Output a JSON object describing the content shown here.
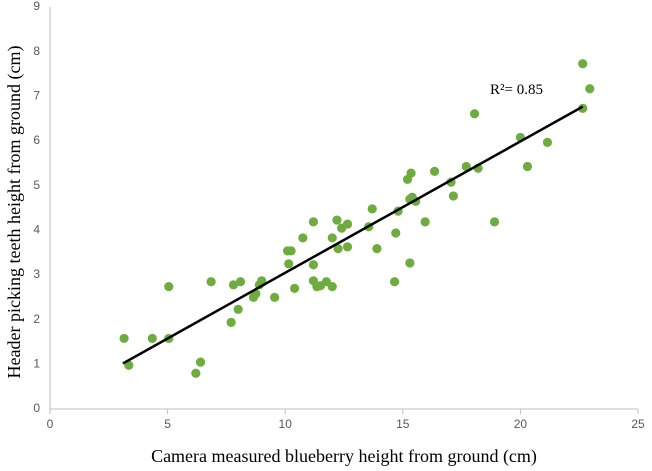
{
  "chart_data": {
    "type": "scatter",
    "xlabel": "Camera measured blueberry height from ground (cm)",
    "ylabel": "Header  picking teeth height from  ground (cm)",
    "annotation": "R²= 0.85",
    "color": "#6eac3f",
    "xlim": [
      0,
      25
    ],
    "xticks": [
      0,
      5,
      10,
      15,
      20,
      25
    ],
    "ylim": [
      0,
      9
    ],
    "yticks": [
      0,
      1,
      2,
      3,
      4,
      5,
      6,
      7,
      8,
      9
    ],
    "grid": false,
    "x": [
      3.15,
      3.35,
      4.35,
      5.05,
      5.05,
      6.2,
      6.4,
      6.85,
      7.7,
      7.8,
      8.0,
      8.1,
      8.65,
      8.75,
      8.9,
      9.0,
      9.55,
      10.1,
      10.25,
      10.15,
      10.4,
      10.75,
      11.2,
      11.2,
      11.2,
      11.35,
      11.5,
      11.75,
      12.0,
      12.0,
      12.2,
      12.25,
      12.4,
      12.65,
      12.65,
      13.55,
      13.7,
      13.9,
      14.65,
      14.7,
      14.8,
      15.3,
      15.2,
      15.35,
      15.3,
      15.4,
      15.55,
      15.95,
      16.35,
      17.05,
      17.15,
      17.7,
      18.05,
      18.2,
      18.9,
      20.0,
      20.3,
      21.15,
      22.65,
      22.65,
      22.95
    ],
    "y": [
      1.58,
      0.98,
      1.58,
      2.74,
      1.58,
      0.8,
      1.05,
      2.85,
      1.94,
      2.78,
      2.23,
      2.85,
      2.5,
      2.58,
      2.78,
      2.87,
      2.5,
      3.54,
      3.54,
      3.25,
      2.7,
      3.83,
      4.19,
      3.23,
      2.87,
      2.74,
      2.76,
      2.85,
      2.74,
      3.83,
      4.23,
      3.59,
      4.05,
      4.14,
      3.63,
      4.08,
      4.48,
      3.59,
      2.85,
      3.94,
      4.43,
      3.27,
      5.14,
      5.28,
      4.7,
      4.74,
      4.65,
      4.19,
      5.32,
      5.08,
      4.77,
      5.43,
      6.61,
      5.39,
      4.19,
      6.08,
      5.43,
      5.97,
      7.73,
      6.73,
      7.17
    ],
    "trendline": {
      "x": [
        3.1,
        22.65
      ],
      "y": [
        1.02,
        6.77
      ],
      "color": "#000000"
    }
  }
}
